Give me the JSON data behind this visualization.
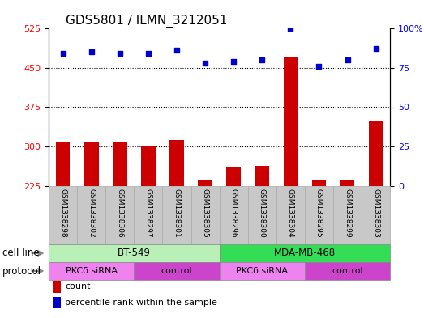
{
  "title": "GDS5801 / ILMN_3212051",
  "samples": [
    "GSM1338298",
    "GSM1338302",
    "GSM1338306",
    "GSM1338297",
    "GSM1338301",
    "GSM1338305",
    "GSM1338296",
    "GSM1338300",
    "GSM1338304",
    "GSM1338295",
    "GSM1338299",
    "GSM1338303"
  ],
  "counts": [
    308,
    308,
    310,
    300,
    312,
    235,
    260,
    263,
    470,
    238,
    238,
    348
  ],
  "percentile_ranks": [
    84,
    85,
    84,
    84,
    86,
    78,
    79,
    80,
    100,
    76,
    80,
    87
  ],
  "ylim_left": [
    225,
    525
  ],
  "ylim_right": [
    0,
    100
  ],
  "yticks_left": [
    225,
    300,
    375,
    450,
    525
  ],
  "yticks_right": [
    0,
    25,
    50,
    75,
    100
  ],
  "bar_color": "#cc0000",
  "dot_color": "#0000cc",
  "cell_line_groups": [
    {
      "label": "BT-549",
      "start": 0,
      "end": 6,
      "color": "#b8f0b8"
    },
    {
      "label": "MDA-MB-468",
      "start": 6,
      "end": 12,
      "color": "#33dd55"
    }
  ],
  "protocol_groups": [
    {
      "label": "PKCδ siRNA",
      "start": 0,
      "end": 3,
      "color": "#ee82ee"
    },
    {
      "label": "control",
      "start": 3,
      "end": 6,
      "color": "#cc44cc"
    },
    {
      "label": "PKCδ siRNA",
      "start": 6,
      "end": 9,
      "color": "#ee82ee"
    },
    {
      "label": "control",
      "start": 9,
      "end": 12,
      "color": "#cc44cc"
    }
  ],
  "legend_count_label": "count",
  "legend_pct_label": "percentile rank within the sample",
  "cell_line_label": "cell line",
  "protocol_label": "protocol",
  "bar_color_legend": "#cc0000",
  "dot_color_legend": "#0000cc",
  "background_plot": "#ffffff",
  "sample_box_color": "#c8c8c8",
  "grid_color": "#000000",
  "title_fontsize": 11,
  "tick_fontsize": 8,
  "label_fontsize": 8.5,
  "sample_fontsize": 6.5,
  "legend_fontsize": 8
}
